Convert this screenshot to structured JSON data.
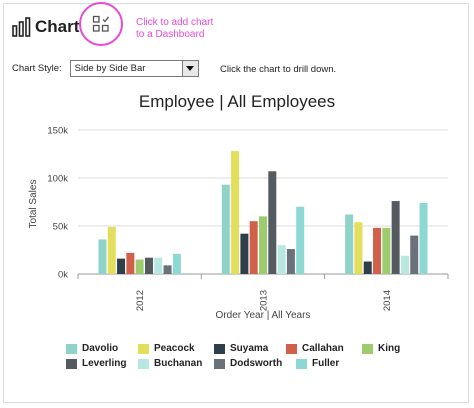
{
  "header": {
    "title": "Chart",
    "hint_line1": "Click to add chart",
    "hint_line2": "to a Dashboard"
  },
  "controls": {
    "style_label": "Chart Style:",
    "style_value": "Side by Side Bar",
    "drill_text": "Click the chart to drill down."
  },
  "colors": {
    "accent": "#e64ad6"
  },
  "chart_data": {
    "type": "bar",
    "title": "Employee | All Employees",
    "xlabel": "Order Year | All Years",
    "ylabel": "Total Sales",
    "categories": [
      "2012",
      "2013",
      "2014"
    ],
    "ylim": [
      0,
      150000
    ],
    "yticks": [
      {
        "value": 0,
        "label": "0k"
      },
      {
        "value": 50000,
        "label": "50k"
      },
      {
        "value": 100000,
        "label": "100k"
      },
      {
        "value": 150000,
        "label": "150k"
      }
    ],
    "series": [
      {
        "name": "Davolio",
        "color": "#8fd3c8",
        "values": [
          36000,
          93000,
          62000
        ]
      },
      {
        "name": "Peacock",
        "color": "#e3de5c",
        "values": [
          49000,
          128000,
          54000
        ]
      },
      {
        "name": "Suyama",
        "color": "#2d3f4b",
        "values": [
          16000,
          42000,
          13000
        ]
      },
      {
        "name": "Callahan",
        "color": "#d0604a",
        "values": [
          22000,
          55000,
          48000
        ]
      },
      {
        "name": "King",
        "color": "#9ccc6e",
        "values": [
          15000,
          60000,
          48000
        ]
      },
      {
        "name": "Leverling",
        "color": "#555a60",
        "values": [
          17000,
          107000,
          76000
        ]
      },
      {
        "name": "Buchanan",
        "color": "#b8e6e0",
        "values": [
          17000,
          30000,
          19000
        ]
      },
      {
        "name": "Dodsworth",
        "color": "#6a7178",
        "values": [
          9000,
          26000,
          40000
        ]
      },
      {
        "name": "Fuller",
        "color": "#8ed8d4",
        "values": [
          21000,
          70000,
          74000
        ]
      }
    ],
    "grid": true,
    "legend_position": "bottom"
  }
}
